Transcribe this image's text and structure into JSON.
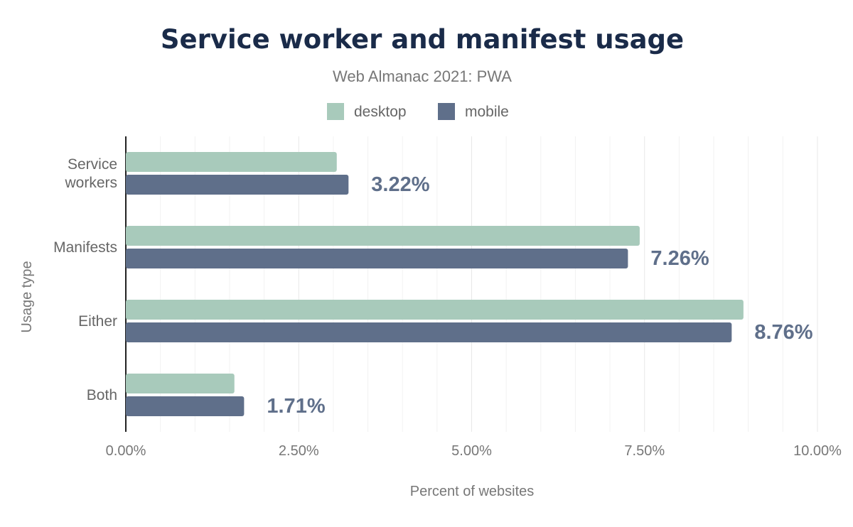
{
  "chart_data": {
    "type": "bar",
    "orientation": "horizontal",
    "title": "Service worker and manifest usage",
    "subtitle": "Web Almanac 2021: PWA",
    "xlabel": "Percent of websites",
    "ylabel": "Usage type",
    "categories": [
      [
        "Service",
        "workers"
      ],
      [
        "Manifests"
      ],
      [
        "Either"
      ],
      [
        "Both"
      ]
    ],
    "series": [
      {
        "name": "desktop",
        "color": "#a8cabb",
        "values": [
          3.05,
          7.43,
          8.93,
          1.57
        ]
      },
      {
        "name": "mobile",
        "color": "#5f6f8a",
        "values": [
          3.22,
          7.26,
          8.76,
          1.71
        ]
      }
    ],
    "data_labels": [
      "3.22%",
      "7.26%",
      "8.76%",
      "1.71%"
    ],
    "xlim": [
      0,
      10
    ],
    "x_ticks": [
      "0.00%",
      "2.50%",
      "5.00%",
      "7.50%",
      "10.00%"
    ],
    "grid": true,
    "legend_position": "top-center",
    "title_color": "#1a2b49",
    "label_color": "#5f6f8a"
  }
}
